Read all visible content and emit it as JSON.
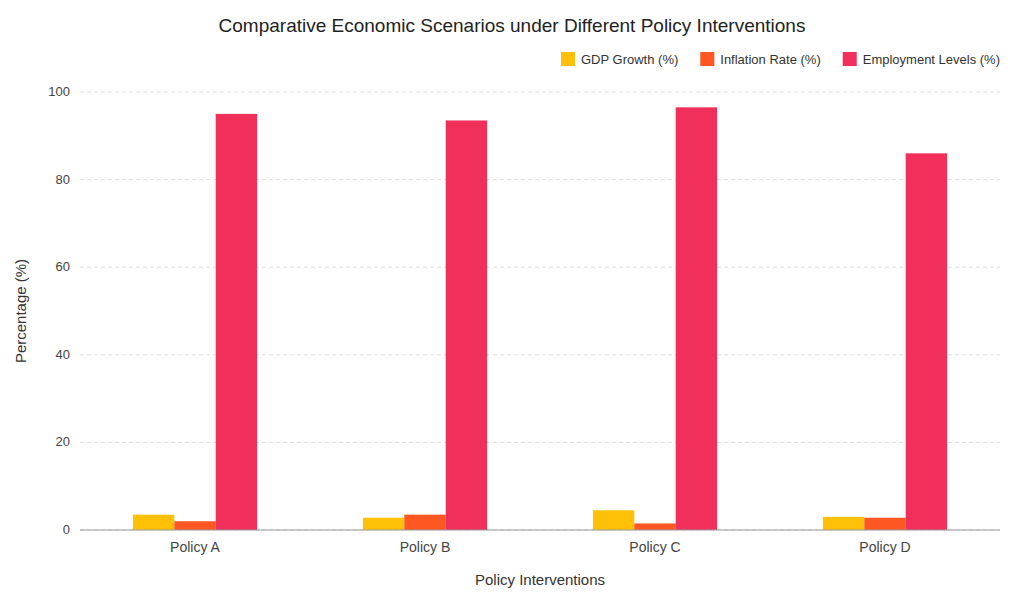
{
  "chart_data": {
    "type": "bar",
    "title": "Comparative Economic Scenarios under Different Policy Interventions",
    "xlabel": "Policy Interventions",
    "ylabel": "Percentage (%)",
    "categories": [
      "Policy A",
      "Policy B",
      "Policy C",
      "Policy D"
    ],
    "series": [
      {
        "name": "GDP Growth (%)",
        "color": "#FFC107",
        "values": [
          3.5,
          2.8,
          4.5,
          3.0
        ]
      },
      {
        "name": "Inflation Rate (%)",
        "color": "#FF5722",
        "values": [
          2.0,
          3.5,
          1.5,
          2.8
        ]
      },
      {
        "name": "Employment Levels (%)",
        "color": "#F0305A",
        "values": [
          95.0,
          93.5,
          96.5,
          86.0
        ]
      }
    ],
    "ylim": [
      0,
      100
    ],
    "yticks": [
      0,
      20,
      40,
      60,
      80,
      100
    ],
    "grid": true,
    "legend": "upper right"
  }
}
